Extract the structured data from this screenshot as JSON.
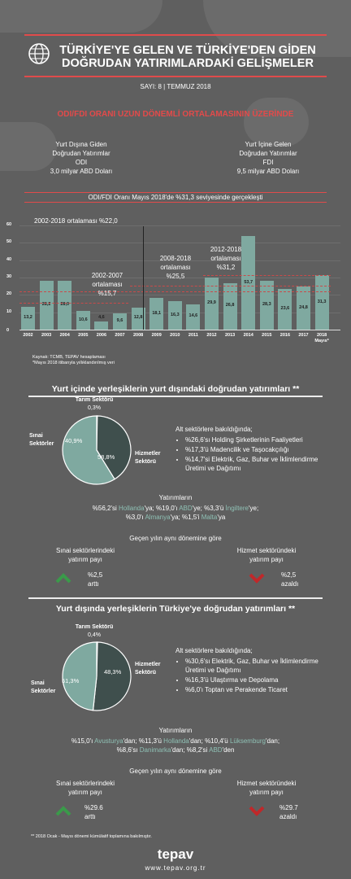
{
  "header": {
    "title_line1": "TÜRKİYE'YE GELEN VE TÜRKİYE'DEN GİDEN",
    "title_line2": "DOĞRUDAN YATIRIMLARDAKİ GELİŞMELER",
    "issue": "SAYI: 8 | TEMMUZ 2018"
  },
  "ratio_section": {
    "heading": "ODI/FDI ORANI UZUN DÖNEMLİ ORTALAMASININ ÜZERİNDE",
    "odi_l1": "Yurt Dışına Giden",
    "odi_l2": "Doğrudan Yatırımlar",
    "odi_l3": "ODI",
    "odi_l4": "3,0 milyar ABD Doları",
    "fdi_l1": "Yurt İçine Gelen",
    "fdi_l2": "Doğrudan Yatırımlar",
    "fdi_l3": "FDI",
    "fdi_l4": "9,5 milyar ABD Doları",
    "banner": "ODI/FDI Oranı Mayıs 2018'de %31,3 seviyesinde gerçekleşti"
  },
  "chart_data": {
    "type": "bar",
    "categories": [
      "2002",
      "2003",
      "2004",
      "2005",
      "2006",
      "2007",
      "2008",
      "2009",
      "2010",
      "2011",
      "2012",
      "2013",
      "2014",
      "2015",
      "2016",
      "2017",
      "2018"
    ],
    "category_suffix_last": "Mayıs*",
    "values": [
      13.2,
      28.2,
      28.0,
      10.6,
      4.6,
      9.6,
      12.8,
      18.1,
      16.3,
      14.6,
      29.9,
      26.8,
      53.7,
      28.3,
      23.6,
      24.8,
      31.3
    ],
    "value_labels": [
      "13,2",
      "28,2",
      "28,0",
      "10,6",
      "4,6",
      "9,6",
      "12,8",
      "18,1",
      "16,3",
      "14,6",
      "29,9",
      "26,8",
      "53,7",
      "28,3",
      "23,6",
      "24,8",
      "31,3"
    ],
    "ylim": [
      0,
      60
    ],
    "yticks": [
      0,
      10,
      20,
      30,
      40,
      50,
      60
    ],
    "annotations": {
      "a1": "2002-2018 ortalaması %22,0",
      "a2_l1": "2002-2007",
      "a2_l2": "ortalaması",
      "a2_l3": "%15,7",
      "a3_l1": "2008-2018",
      "a3_l2": "ortalaması",
      "a3_l3": "%25,5",
      "a4_l1": "2012-2018",
      "a4_l2": "ortalaması",
      "a4_l3": "%31,2"
    },
    "averages": {
      "overall": 22.0,
      "p2002_2007": 15.7,
      "p2008_2018": 25.5,
      "p2012_2018": 31.2
    },
    "bar_color": "#7fa9a0"
  },
  "source": {
    "l1": "Kaynak: TCMB, TEPAV hesaplaması",
    "l2": "*Mayıs 2018 itibarıyla yıllıklandırılmış veri"
  },
  "odi_section": {
    "heading": "Yurt içinde yerleşiklerin yurt dışındaki doğrudan yatırımları **",
    "pie": {
      "tarim_label": "Tarım Sektörü",
      "tarim_value": "0,3%",
      "sinai_label_l1": "Sınai",
      "sinai_label_l2": "Sektörler",
      "sinai_value": "40,9%",
      "hizmet_label_l1": "Hizmetler",
      "hizmet_label_l2": "Sektörü",
      "hizmet_value": "58,8%",
      "values": [
        0.3,
        40.9,
        58.8
      ]
    },
    "sub_intro": "Alt sektörlere bakıldığında;",
    "bullets": [
      "%26,6'sı Holding Şirketlerinin Faaliyetleri",
      "%17,3'ü Madencilik ve Taşocakçılığı",
      "%14,7'si Elektrik, Gaz, Buhar ve İklimlendirme Üretimi ve Dağıtımı"
    ],
    "inv_title": "Yatırımların",
    "inv_l1": [
      {
        "t": "%56,2'si ",
        "h": false
      },
      {
        "t": "Hollanda",
        "h": true
      },
      {
        "t": "'ya; %19,0'ı ",
        "h": false
      },
      {
        "t": "ABD",
        "h": true
      },
      {
        "t": "'ye; %3,3'ü ",
        "h": false
      },
      {
        "t": "İngiltere",
        "h": true
      },
      {
        "t": "'ye;",
        "h": false
      }
    ],
    "inv_l2": [
      {
        "t": "%3,0'ı ",
        "h": false
      },
      {
        "t": "Almanya",
        "h": true
      },
      {
        "t": "'ya; %1,5'i ",
        "h": false
      },
      {
        "t": "Malta",
        "h": true
      },
      {
        "t": "'ya",
        "h": false
      }
    ],
    "yoy": "Geçen yılın aynı dönemine göre",
    "left_l1": "Sınai sektörlerindeki",
    "left_l2": "yatırım payı",
    "left_val": "%2,5",
    "left_dir": "arttı",
    "right_l1": "Hizmet sektöründeki",
    "right_l2": "yatırım payı",
    "right_val": "%2,5",
    "right_dir": "azaldı"
  },
  "fdi_section": {
    "heading": "Yurt dışında yerleşiklerin Türkiye'ye doğrudan yatırımları **",
    "pie": {
      "tarim_label": "Tarım Sektörü",
      "tarim_value": "0,4%",
      "sinai_label_l1": "Sınai",
      "sinai_label_l2": "Sektörler",
      "sinai_value": "51,3%",
      "hizmet_label_l1": "Hizmetler",
      "hizmet_label_l2": "Sektörü",
      "hizmet_value": "48,3%",
      "values": [
        0.4,
        51.3,
        48.3
      ]
    },
    "sub_intro": "Alt sektörlere bakıldığında;",
    "bullets": [
      "%30,6'sı Elektrik, Gaz, Buhar ve İklimlendirme Üretimi ve Dağıtımı",
      "%16,3'ü Ulaştırma ve Depolama",
      "%6,0'ı Toptan ve Perakende Ticaret"
    ],
    "inv_title": "Yatırımların",
    "inv_l1": [
      {
        "t": "%15,0'ı ",
        "h": false
      },
      {
        "t": "Avusturya",
        "h": true
      },
      {
        "t": "'dan; %11,3'ü ",
        "h": false
      },
      {
        "t": "Hollanda",
        "h": true
      },
      {
        "t": "'dan; %10,4'ü ",
        "h": false
      },
      {
        "t": "Lüksemburg",
        "h": true
      },
      {
        "t": "'dan;",
        "h": false
      }
    ],
    "inv_l2": [
      {
        "t": "%8,6'sı ",
        "h": false
      },
      {
        "t": "Danimarka",
        "h": true
      },
      {
        "t": "'dan; %8,2'si ",
        "h": false
      },
      {
        "t": "ABD",
        "h": true
      },
      {
        "t": "'den",
        "h": false
      }
    ],
    "yoy": "Geçen yılın aynı dönemine göre",
    "left_l1": "Sınai sektörlerindeki",
    "left_l2": "yatırım payı",
    "left_val": "%29.6",
    "left_dir": "arttı",
    "right_l1": "Hizmet sektöründeki",
    "right_l2": "yatırım payı",
    "right_val": "%29.7",
    "right_dir": "azaldı"
  },
  "footer": {
    "note": "** 2018 Ocak - Mayıs dönemi kümülatif toplamına bakılmıştır.",
    "logo": "tepav",
    "url": "www.tepav.org.tr"
  },
  "colors": {
    "accent_red": "#e34a4a",
    "teal": "#7fa9a0",
    "dark_teal": "#3f4f4d",
    "up_green": "#3a9a4a",
    "down_red": "#c0282a"
  }
}
